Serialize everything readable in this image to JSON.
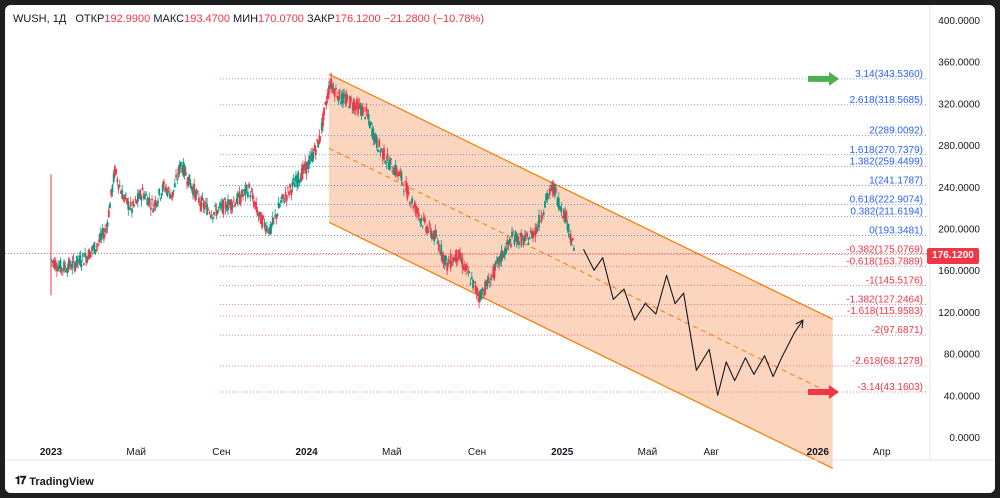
{
  "legend": {
    "symbol": "WUSH, 1Д",
    "open_label": "ОТКР",
    "open": "192.9900",
    "high_label": "МАКС",
    "high": "193.4700",
    "low_label": "МИН",
    "low": "170.0700",
    "close_label": "ЗАКР",
    "close": "176.1200",
    "change": "−21.2800 (−10.78%)"
  },
  "current_price": "176.1200",
  "branding": {
    "logo_text": "TradingView"
  },
  "colors": {
    "down": "#f23645",
    "up": "#089981",
    "fib_blue": "#2962ff",
    "channel_line": "#f57c00",
    "channel_fill": "#f9c7a8",
    "forecast_line": "#131722",
    "arrow_green": "#4caf50",
    "arrow_red": "#f23645"
  },
  "chart_data": {
    "type": "candlestick",
    "title": "WUSH, 1Д",
    "y_axis": {
      "range": [
        0,
        400
      ],
      "ticks": [
        "400.0000",
        "360.0000",
        "320.0000",
        "280.0000",
        "240.0000",
        "200.0000",
        "160.0000",
        "120.0000",
        "80.0000",
        "40.0000",
        "0.0000"
      ]
    },
    "x_axis": {
      "ticks": [
        "2023",
        "Май",
        "Сен",
        "2024",
        "Май",
        "Сен",
        "2025",
        "Май",
        "Авг",
        "2026",
        "Апр"
      ],
      "bold_ticks": [
        "2023",
        "2024",
        "2025",
        "2026"
      ],
      "range_months": [
        -1,
        39
      ]
    },
    "fib_levels": [
      {
        "label": "3.14(343.5360)",
        "value": 343.536,
        "color": "blue"
      },
      {
        "label": "2.618(318.5685)",
        "value": 318.5685,
        "color": "blue"
      },
      {
        "label": "2(289.0092)",
        "value": 289.0092,
        "color": "blue"
      },
      {
        "label": "1.618(270.7379)",
        "value": 270.7379,
        "color": "blue"
      },
      {
        "label": "1.382(259.4499)",
        "value": 259.4499,
        "color": "blue"
      },
      {
        "label": "1(241.1787)",
        "value": 241.1787,
        "color": "blue"
      },
      {
        "label": "0.618(222.9074)",
        "value": 222.9074,
        "color": "blue"
      },
      {
        "label": "0.382(211.6194)",
        "value": 211.6194,
        "color": "blue"
      },
      {
        "label": "0(193.3481)",
        "value": 193.3481,
        "color": "blue"
      },
      {
        "label": "-0.382(175.0769)",
        "value": 175.0769,
        "color": "red"
      },
      {
        "label": "-0.618(163.7889)",
        "value": 163.7889,
        "color": "red"
      },
      {
        "label": "-1(145.5176)",
        "value": 145.5176,
        "color": "red"
      },
      {
        "label": "-1.382(127.2464)",
        "value": 127.2464,
        "color": "red"
      },
      {
        "label": "-1.618(115.9583)",
        "value": 115.9583,
        "color": "red"
      },
      {
        "label": "-2(97.6871)",
        "value": 97.6871,
        "color": "red"
      },
      {
        "label": "-2.618(68.1278)",
        "value": 68.1278,
        "color": "red"
      },
      {
        "label": "-3.14(43.1603)",
        "value": 43.1603,
        "color": "red"
      }
    ],
    "price_path": [
      [
        0,
        170
      ],
      [
        0.5,
        162
      ],
      [
        1,
        165
      ],
      [
        1.6,
        172
      ],
      [
        2.2,
        185
      ],
      [
        2.6,
        200
      ],
      [
        3,
        255
      ],
      [
        3.4,
        230
      ],
      [
        3.8,
        218
      ],
      [
        4.3,
        235
      ],
      [
        4.8,
        222
      ],
      [
        5.3,
        240
      ],
      [
        5.7,
        232
      ],
      [
        6.1,
        262
      ],
      [
        6.5,
        245
      ],
      [
        7,
        225
      ],
      [
        7.6,
        215
      ],
      [
        8.2,
        222
      ],
      [
        8.8,
        228
      ],
      [
        9.3,
        238
      ],
      [
        9.8,
        210
      ],
      [
        10.3,
        198
      ],
      [
        10.8,
        225
      ],
      [
        11.5,
        245
      ],
      [
        12.1,
        262
      ],
      [
        12.6,
        285
      ],
      [
        13.1,
        340
      ],
      [
        13.6,
        325
      ],
      [
        14.2,
        320
      ],
      [
        14.8,
        310
      ],
      [
        15.3,
        282
      ],
      [
        15.8,
        265
      ],
      [
        16.4,
        250
      ],
      [
        16.9,
        228
      ],
      [
        17.5,
        205
      ],
      [
        18.1,
        190
      ],
      [
        18.6,
        165
      ],
      [
        19.1,
        175
      ],
      [
        19.7,
        152
      ],
      [
        20.1,
        135
      ],
      [
        20.6,
        150
      ],
      [
        21.2,
        175
      ],
      [
        21.7,
        192
      ],
      [
        22.3,
        188
      ],
      [
        22.8,
        200
      ],
      [
        23.3,
        230
      ],
      [
        23.6,
        240
      ],
      [
        23.9,
        222
      ],
      [
        24.2,
        210
      ],
      [
        24.4,
        192
      ],
      [
        24.6,
        176
      ]
    ],
    "initial_spike": {
      "x": 0,
      "high": 252,
      "low": 136
    },
    "forecast_path": [
      [
        25.0,
        180
      ],
      [
        25.5,
        160
      ],
      [
        25.9,
        172
      ],
      [
        26.4,
        132
      ],
      [
        26.9,
        142
      ],
      [
        27.4,
        112
      ],
      [
        27.9,
        128
      ],
      [
        28.4,
        118
      ],
      [
        28.9,
        155
      ],
      [
        29.3,
        128
      ],
      [
        29.7,
        138
      ],
      [
        30.3,
        64
      ],
      [
        30.9,
        84
      ],
      [
        31.3,
        40
      ],
      [
        31.7,
        72
      ],
      [
        32.1,
        54
      ],
      [
        32.6,
        76
      ],
      [
        33.0,
        60
      ],
      [
        33.5,
        78
      ],
      [
        33.9,
        58
      ],
      [
        34.3,
        76
      ],
      [
        34.9,
        100
      ],
      [
        35.3,
        112
      ]
    ],
    "channel": {
      "upper": [
        [
          13.05,
          348
        ],
        [
          36.7,
          113
        ]
      ],
      "lower": [
        [
          13.05,
          206
        ],
        [
          36.7,
          -30
        ]
      ],
      "mid": [
        [
          13.05,
          277
        ],
        [
          36.7,
          41
        ]
      ]
    },
    "annotations": {
      "green_arrow_at": 343.536,
      "red_arrow_at": 43.1603,
      "forecast_arrowhead": "end-of-forecast"
    }
  }
}
